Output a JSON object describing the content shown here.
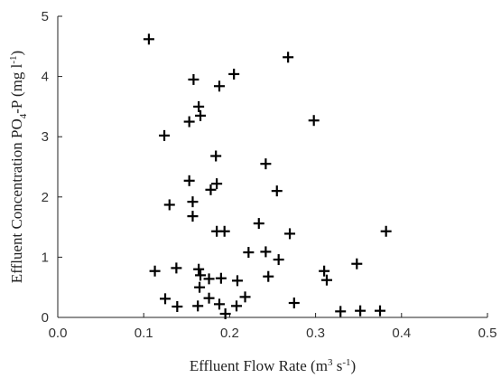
{
  "chart_data": {
    "type": "scatter",
    "title": "",
    "xlabel": {
      "main": "Effluent Flow Rate (m",
      "sup1": "3",
      "mid": " s",
      "sup2": "-1",
      "end": ")"
    },
    "ylabel": {
      "main": "Effluent Concentration  PO",
      "sub": "4",
      "mid": "-P (mg l",
      "sup": "-1",
      "end": ")"
    },
    "xlim": [
      0.0,
      0.5
    ],
    "ylim": [
      0,
      5
    ],
    "x_ticks": [
      "0.0",
      "0.1",
      "0.2",
      "0.3",
      "0.4",
      "0.5"
    ],
    "y_ticks": [
      "0",
      "1",
      "2",
      "3",
      "4",
      "5"
    ],
    "marker": "+",
    "grid": false,
    "series": [
      {
        "points": [
          {
            "x": 0.106,
            "y": 4.62
          },
          {
            "x": 0.158,
            "y": 3.95
          },
          {
            "x": 0.205,
            "y": 4.04
          },
          {
            "x": 0.268,
            "y": 4.32
          },
          {
            "x": 0.188,
            "y": 3.84
          },
          {
            "x": 0.164,
            "y": 3.5
          },
          {
            "x": 0.166,
            "y": 3.35
          },
          {
            "x": 0.153,
            "y": 3.25
          },
          {
            "x": 0.298,
            "y": 3.27
          },
          {
            "x": 0.124,
            "y": 3.02
          },
          {
            "x": 0.184,
            "y": 2.68
          },
          {
            "x": 0.242,
            "y": 2.55
          },
          {
            "x": 0.153,
            "y": 2.27
          },
          {
            "x": 0.185,
            "y": 2.22
          },
          {
            "x": 0.178,
            "y": 2.12
          },
          {
            "x": 0.255,
            "y": 2.1
          },
          {
            "x": 0.157,
            "y": 1.92
          },
          {
            "x": 0.13,
            "y": 1.87
          },
          {
            "x": 0.157,
            "y": 1.68
          },
          {
            "x": 0.234,
            "y": 1.56
          },
          {
            "x": 0.185,
            "y": 1.43
          },
          {
            "x": 0.194,
            "y": 1.43
          },
          {
            "x": 0.27,
            "y": 1.39
          },
          {
            "x": 0.382,
            "y": 1.43
          },
          {
            "x": 0.222,
            "y": 1.08
          },
          {
            "x": 0.242,
            "y": 1.09
          },
          {
            "x": 0.257,
            "y": 0.96
          },
          {
            "x": 0.348,
            "y": 0.89
          },
          {
            "x": 0.113,
            "y": 0.77
          },
          {
            "x": 0.138,
            "y": 0.82
          },
          {
            "x": 0.164,
            "y": 0.8
          },
          {
            "x": 0.166,
            "y": 0.7
          },
          {
            "x": 0.176,
            "y": 0.64
          },
          {
            "x": 0.19,
            "y": 0.65
          },
          {
            "x": 0.209,
            "y": 0.61
          },
          {
            "x": 0.245,
            "y": 0.68
          },
          {
            "x": 0.31,
            "y": 0.77
          },
          {
            "x": 0.313,
            "y": 0.62
          },
          {
            "x": 0.165,
            "y": 0.5
          },
          {
            "x": 0.125,
            "y": 0.31
          },
          {
            "x": 0.176,
            "y": 0.32
          },
          {
            "x": 0.218,
            "y": 0.34
          },
          {
            "x": 0.139,
            "y": 0.18
          },
          {
            "x": 0.163,
            "y": 0.19
          },
          {
            "x": 0.188,
            "y": 0.22
          },
          {
            "x": 0.208,
            "y": 0.19
          },
          {
            "x": 0.275,
            "y": 0.24
          },
          {
            "x": 0.195,
            "y": 0.06
          },
          {
            "x": 0.329,
            "y": 0.1
          },
          {
            "x": 0.352,
            "y": 0.11
          },
          {
            "x": 0.375,
            "y": 0.11
          }
        ]
      }
    ]
  }
}
